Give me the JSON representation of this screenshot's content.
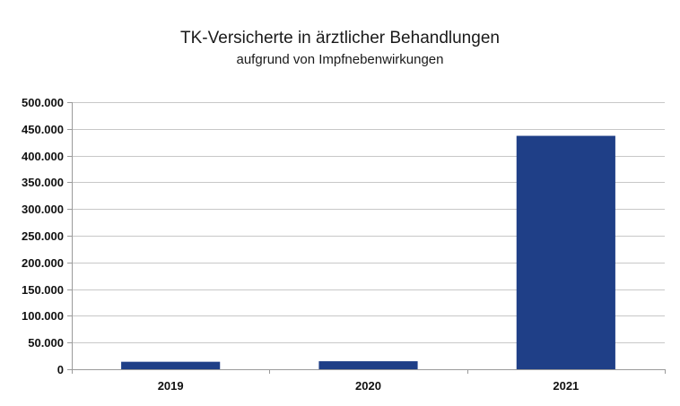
{
  "chart_data": {
    "type": "bar",
    "title": "TK-Versicherte in ärztlicher Behandlungen",
    "subtitle": "aufgrund von Impfnebenwirkungen",
    "categories": [
      "2019",
      "2020",
      "2021"
    ],
    "values": [
      14000,
      15000,
      437000
    ],
    "ylim": [
      0,
      500000
    ],
    "yticks": [
      0,
      50000,
      100000,
      150000,
      200000,
      250000,
      300000,
      350000,
      400000,
      450000,
      500000
    ],
    "ytick_labels": [
      "0",
      "50.000",
      "100.000",
      "150.000",
      "200.000",
      "250.000",
      "300.000",
      "350.000",
      "400.000",
      "450.000",
      "500.000"
    ],
    "xlabel": "",
    "ylabel": "",
    "grid": true,
    "bar_color": "#1f3f87",
    "grid_color": "#c8c8c8",
    "axis_color": "#9a9a9a"
  }
}
